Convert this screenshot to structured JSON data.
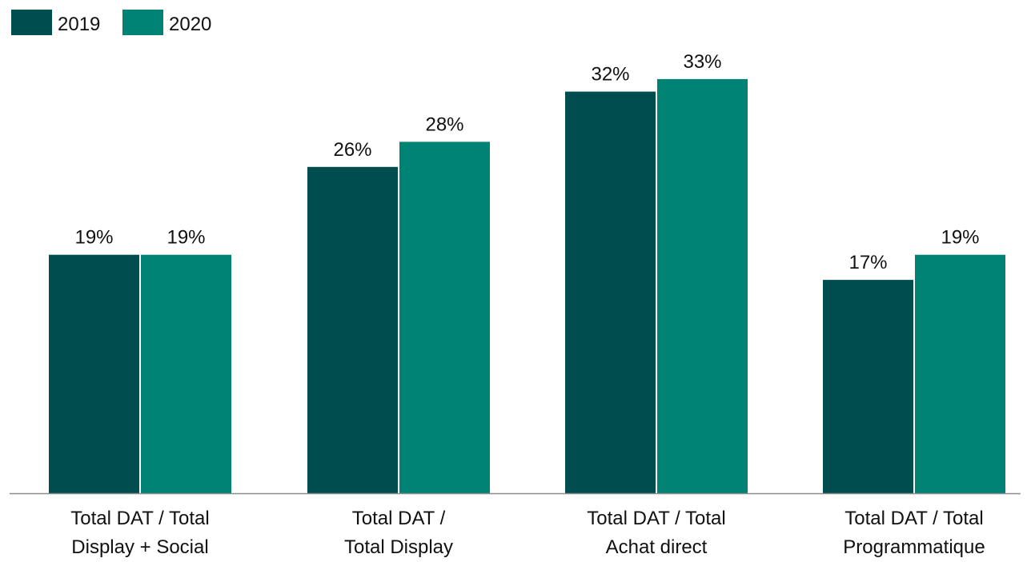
{
  "chart_data": {
    "type": "bar",
    "title": "",
    "xlabel": "",
    "ylabel": "",
    "categories": [
      [
        "Total DAT / Total",
        "Display + Social"
      ],
      [
        "Total DAT /",
        "Total Display"
      ],
      [
        "Total DAT / Total",
        "Achat direct"
      ],
      [
        "Total DAT / Total",
        "Programmatique"
      ]
    ],
    "series": [
      {
        "name": "2019",
        "values": [
          19,
          26,
          32,
          17
        ],
        "labels": [
          "19%",
          "26%",
          "32%",
          "17%"
        ],
        "color": "#004D50"
      },
      {
        "name": "2020",
        "values": [
          19,
          28,
          33,
          19
        ],
        "labels": [
          "19%",
          "28%",
          "33%",
          "19%"
        ],
        "color": "#008275"
      }
    ],
    "ylim": [
      0,
      36
    ],
    "grid": false,
    "legend": "top-left",
    "axis_color": "#8C8C8C"
  }
}
